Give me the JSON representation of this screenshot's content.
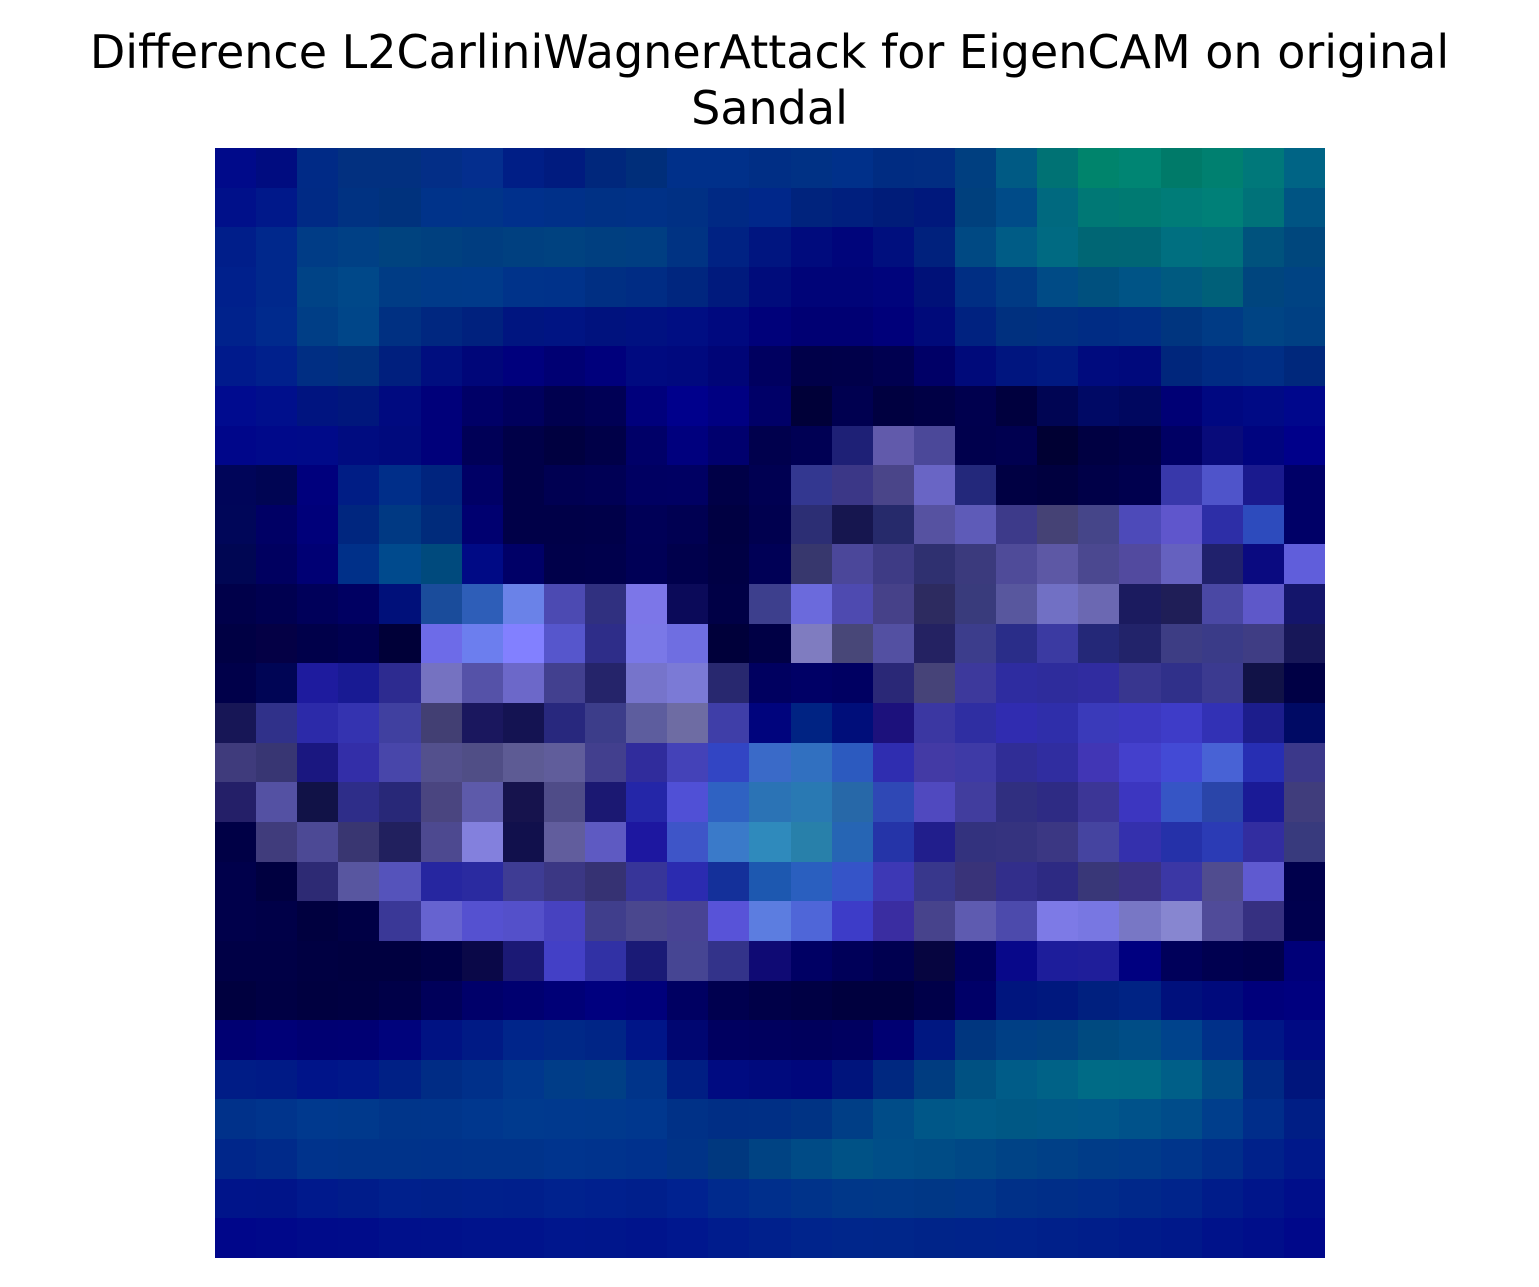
{
  "figure": {
    "title_line1": "Difference L2CarliniWagnerAttack for EigenCAM on original",
    "title_line2": "Sandal"
  },
  "chart_data": {
    "type": "heatmap",
    "title": "Difference L2CarliniWagnerAttack for EigenCAM on original Sandal",
    "axes_visible": false,
    "grid": false,
    "colors": [
      [
        "#000a8a",
        "#000c80",
        "#002a86",
        "#023080",
        "#023080",
        "#032e87",
        "#042e8e",
        "#001e86",
        "#001b7f",
        "#00277c",
        "#002e7a",
        "#00308a",
        "#00308a",
        "#002e85",
        "#003185",
        "#00308a",
        "#002c82",
        "#012d82",
        "#003f80",
        "#005a84",
        "#007274",
        "#00846c",
        "#008573",
        "#007a69",
        "#008070",
        "#00787a",
        "#006485"
      ],
      [
        "#00108a",
        "#00188a",
        "#002a85",
        "#003282",
        "#00327d",
        "#00338a",
        "#003489",
        "#00308c",
        "#003089",
        "#003185",
        "#003187",
        "#003084",
        "#002984",
        "#00278a",
        "#00237d",
        "#001f7e",
        "#001c79",
        "#00187c",
        "#00407d",
        "#004b88",
        "#00697f",
        "#007875",
        "#007a72",
        "#007c78",
        "#008078",
        "#007279",
        "#005483"
      ],
      [
        "#001e8a",
        "#00288c",
        "#003c86",
        "#004085",
        "#00437f",
        "#00407f",
        "#003d80",
        "#004080",
        "#004280",
        "#003f80",
        "#003e82",
        "#003383",
        "#002283",
        "#001580",
        "#000b7d",
        "#00057b",
        "#000f7e",
        "#00217d",
        "#004983",
        "#005c86",
        "#006a82",
        "#006674",
        "#006675",
        "#006f80",
        "#00707c",
        "#00527d",
        "#00477d"
      ],
      [
        "#00208c",
        "#00288c",
        "#004386",
        "#004889",
        "#003c85",
        "#003a89",
        "#003a8a",
        "#00338a",
        "#00328a",
        "#002f83",
        "#002c84",
        "#00267f",
        "#001a7d",
        "#000c7b",
        "#000478",
        "#000478",
        "#00047c",
        "#001178",
        "#002e83",
        "#003a84",
        "#004b86",
        "#00507e",
        "#005486",
        "#005a80",
        "#006079",
        "#00457e",
        "#004383"
      ],
      [
        "#00228c",
        "#002a8d",
        "#003e86",
        "#004689",
        "#003082",
        "#002780",
        "#00217e",
        "#001580",
        "#001483",
        "#00127e",
        "#001181",
        "#000e83",
        "#00097f",
        "#00017a",
        "#000073",
        "#000073",
        "#00007a",
        "#000a7a",
        "#002280",
        "#00307f",
        "#002f82",
        "#002c84",
        "#002e85",
        "#00357f",
        "#003b85",
        "#004484",
        "#004083"
      ],
      [
        "#001a8c",
        "#00208c",
        "#002e83",
        "#00307e",
        "#001f7e",
        "#000e7f",
        "#000679",
        "#00007d",
        "#000073",
        "#00007c",
        "#000a80",
        "#00097e",
        "#000577",
        "#000060",
        "#000049",
        "#00004a",
        "#000050",
        "#000067",
        "#000a7a",
        "#00157f",
        "#001981",
        "#000b7e",
        "#00097c",
        "#00267c",
        "#002b83",
        "#002e85",
        "#00287c"
      ],
      [
        "#000b8f",
        "#000f8c",
        "#001480",
        "#00177c",
        "#000a80",
        "#00007a",
        "#000067",
        "#00005d",
        "#00004f",
        "#000055",
        "#00007c",
        "#00008c",
        "#000082",
        "#000068",
        "#000038",
        "#000050",
        "#000040",
        "#000045",
        "#00004e",
        "#00003e",
        "#000553",
        "#000965",
        "#00075f",
        "#000075",
        "#000881",
        "#000a85",
        "#00078c"
      ],
      [
        "#00068a",
        "#00098a",
        "#000a89",
        "#000c80",
        "#000a7d",
        "#00007a",
        "#000057",
        "#000048",
        "#000040",
        "#000048",
        "#000068",
        "#00007e",
        "#00006e",
        "#00004d",
        "#000054",
        "#1e2076",
        "#615aab",
        "#4b4899",
        "#00004d",
        "#000050",
        "#000033",
        "#000042",
        "#000048",
        "#000064",
        "#080b7a",
        "#00047f",
        "#00008a"
      ],
      [
        "#000559",
        "#000553",
        "#00007d",
        "#001d85",
        "#002e89",
        "#00247e",
        "#000066",
        "#000048",
        "#000052",
        "#000055",
        "#000062",
        "#000063",
        "#000047",
        "#000052",
        "#333790",
        "#3b3787",
        "#4a4589",
        "#6965c5",
        "#23287b",
        "#000043",
        "#00003f",
        "#000048",
        "#00004e",
        "#3838aa",
        "#4f54ca",
        "#1a1a8e",
        "#000067"
      ],
      [
        "#000659",
        "#000065",
        "#00007a",
        "#00267f",
        "#003983",
        "#002b7b",
        "#000070",
        "#000048",
        "#000048",
        "#000049",
        "#000057",
        "#000052",
        "#000042",
        "#00004f",
        "#2c2e74",
        "#16164f",
        "#262a6b",
        "#5652a1",
        "#5e5bb8",
        "#3d3a8a",
        "#454275",
        "#454589",
        "#4d4ab9",
        "#5f56cc",
        "#2d2ea7",
        "#2d4bbd",
        "#000067"
      ],
      [
        "#000653",
        "#000060",
        "#000074",
        "#003089",
        "#004a8d",
        "#004a7d",
        "#000a85",
        "#000067",
        "#00004a",
        "#00004c",
        "#000056",
        "#00004c",
        "#000044",
        "#000056",
        "#37376d",
        "#4b479a",
        "#3e3b85",
        "#2f3070",
        "#3b3a7d",
        "#4f4b99",
        "#5d58a5",
        "#4b4890",
        "#524a9f",
        "#6561bf",
        "#20216c",
        "#0a0a80",
        "#605edb"
      ],
      [
        "#00004a",
        "#000050",
        "#00005a",
        "#000062",
        "#00107a",
        "#1a4c9b",
        "#2e5eb8",
        "#6a82e8",
        "#4c4ab2",
        "#303080",
        "#7c76e8",
        "#0b0a59",
        "#000046",
        "#3d3f8d",
        "#6b6adc",
        "#4e4ab0",
        "#464189",
        "#2d2b60",
        "#393b7c",
        "#58579e",
        "#7170c4",
        "#6b68b2",
        "#1b1b5f",
        "#1f1e57",
        "#4a48a4",
        "#5e58c9",
        "#14156b"
      ],
      [
        "#000044",
        "#040045",
        "#00004a",
        "#000050",
        "#000038",
        "#6d6be8",
        "#6c7eee",
        "#8280ff",
        "#5656cc",
        "#2e2d89",
        "#7a78e7",
        "#6f6ee1",
        "#00003a",
        "#000045",
        "#7f7cc0",
        "#484778",
        "#5350a2",
        "#242262",
        "#3c3d8c",
        "#2a2d89",
        "#3b3aa2",
        "#242878",
        "#22236a",
        "#3d3d84",
        "#3a3b88",
        "#3f3d84",
        "#171758"
      ],
      [
        "#00004a",
        "#000555",
        "#1e1b9e",
        "#181a93",
        "#2d2b90",
        "#7572c1",
        "#5552a8",
        "#6c68c9",
        "#42408f",
        "#25246a",
        "#7674cb",
        "#7b7ad6",
        "#28286f",
        "#000060",
        "#000066",
        "#000062",
        "#2a2877",
        "#464378",
        "#3d399c",
        "#2e2ca0",
        "#2e2c9c",
        "#302ca0",
        "#38368f",
        "#30308a",
        "#3b3a90",
        "#111247",
        "#000045"
      ],
      [
        "#171656",
        "#30318a",
        "#2c2aa9",
        "#3433b0",
        "#4040a0",
        "#423f73",
        "#1a175e",
        "#141352",
        "#28287e",
        "#3c3d8a",
        "#5d5d9e",
        "#6e6ca3",
        "#3f3ea8",
        "#00047d",
        "#002383",
        "#000e7a",
        "#1c117c",
        "#3b37a2",
        "#2f2ea2",
        "#302cb0",
        "#2f2eaa",
        "#3a3aba",
        "#3c38c0",
        "#3e3cc8",
        "#3231b5",
        "#1c1d8c",
        "#000a64"
      ],
      [
        "#3f3b7c",
        "#383673",
        "#1a1780",
        "#332ea8",
        "#4846aa",
        "#53508d",
        "#504e86",
        "#5d5b94",
        "#605d9b",
        "#423f8e",
        "#302c9c",
        "#4442b8",
        "#3245c4",
        "#3a6ac8",
        "#3170c0",
        "#2c5abf",
        "#2f2db0",
        "#433aa5",
        "#3e3aa6",
        "#302d96",
        "#302da0",
        "#4136b5",
        "#4440cc",
        "#434ad5",
        "#4862d5",
        "#272eb3",
        "#3b388a"
      ],
      [
        "#241f68",
        "#5451a3",
        "#111247",
        "#2e2d89",
        "#282878",
        "#4a4580",
        "#5d5aaa",
        "#16134d",
        "#4f4c88",
        "#1b1872",
        "#2426a8",
        "#5050d6",
        "#2f62c2",
        "#2b73b5",
        "#2979b3",
        "#2768a8",
        "#2f48b5",
        "#5049bf",
        "#413d9e",
        "#302f80",
        "#2e2b84",
        "#3c3696",
        "#3c36c0",
        "#3655c5",
        "#2a45a9",
        "#1a1a96",
        "#403d7c"
      ],
      [
        "#000046",
        "#403c7c",
        "#4c4995",
        "#393671",
        "#21205e",
        "#4d4990",
        "#8380dd",
        "#11104c",
        "#615d9d",
        "#5e5ac2",
        "#1d17a0",
        "#3e55c8",
        "#3a7ac9",
        "#2f8abc",
        "#2880aa",
        "#2665b4",
        "#2534a8",
        "#211e8c",
        "#33327e",
        "#35337f",
        "#3b3783",
        "#4544a0",
        "#3430ad",
        "#2531a9",
        "#2b3bb5",
        "#322da0",
        "#383a7d"
      ],
      [
        "#00004b",
        "#000040",
        "#2d2a74",
        "#5856a0",
        "#5553bb",
        "#2626a0",
        "#2a2aa0",
        "#3e3c94",
        "#3b3784",
        "#363273",
        "#373599",
        "#2b2bb0",
        "#14309a",
        "#1d58b0",
        "#2a5fbf",
        "#3554c8",
        "#3d38b5",
        "#38378c",
        "#393379",
        "#322e8b",
        "#2d2a83",
        "#393778",
        "#3a3285",
        "#3b37a5",
        "#504c8f",
        "#5f5ad0",
        "#00004c"
      ],
      [
        "#00004b",
        "#000048",
        "#00003f",
        "#000045",
        "#3a3897",
        "#6663d0",
        "#5551d0",
        "#5450ca",
        "#4742c0",
        "#403e8c",
        "#4a478e",
        "#484394",
        "#5853d8",
        "#5c7de0",
        "#4f66d8",
        "#3d3cc8",
        "#3a2da1",
        "#47438c",
        "#5e5bb0",
        "#4c4aac",
        "#7d7ae6",
        "#7877e2",
        "#7877c5",
        "#8786d0",
        "#504b99",
        "#363081",
        "#00004e"
      ],
      [
        "#000046",
        "#000046",
        "#000042",
        "#000040",
        "#000040",
        "#000046",
        "#0a0848",
        "#1b1975",
        "#4340c6",
        "#3131a5",
        "#1a1a76",
        "#464593",
        "#33338a",
        "#0f0a74",
        "#000064",
        "#000059",
        "#000050",
        "#060540",
        "#00005e",
        "#08088a",
        "#1d1d9b",
        "#1f1e9a",
        "#000080",
        "#00005a",
        "#000050",
        "#00004c",
        "#000078"
      ],
      [
        "#00003f",
        "#000044",
        "#000040",
        "#000042",
        "#000048",
        "#00005a",
        "#00006a",
        "#000070",
        "#000077",
        "#00007f",
        "#00007b",
        "#000062",
        "#00004f",
        "#000048",
        "#000044",
        "#00003e",
        "#00003e",
        "#000049",
        "#000068",
        "#00157e",
        "#00187e",
        "#00207f",
        "#002384",
        "#00107c",
        "#000a7c",
        "#00007b",
        "#00007f"
      ],
      [
        "#000072",
        "#000077",
        "#000072",
        "#000073",
        "#00037c",
        "#001283",
        "#001a85",
        "#00258a",
        "#002887",
        "#002586",
        "#001588",
        "#000671",
        "#000060",
        "#00005e",
        "#00005c",
        "#000060",
        "#000072",
        "#001781",
        "#00367f",
        "#003f85",
        "#004182",
        "#004a80",
        "#004d86",
        "#00438c",
        "#003089",
        "#001686",
        "#000a83"
      ],
      [
        "#001c86",
        "#001a86",
        "#001489",
        "#001789",
        "#002085",
        "#002c85",
        "#00308a",
        "#00378d",
        "#003d88",
        "#003f85",
        "#00348a",
        "#001e83",
        "#000b81",
        "#000a7d",
        "#00077c",
        "#00147c",
        "#002880",
        "#003c80",
        "#005182",
        "#005c88",
        "#006287",
        "#006b86",
        "#006a86",
        "#005f88",
        "#004b86",
        "#002984",
        "#00157c"
      ],
      [
        "#00318a",
        "#00348c",
        "#00398e",
        "#00398c",
        "#00358a",
        "#00358b",
        "#00378e",
        "#003a8e",
        "#00398e",
        "#00398d",
        "#00378e",
        "#003187",
        "#002e85",
        "#002f85",
        "#003384",
        "#003e86",
        "#004c88",
        "#005788",
        "#005a88",
        "#005885",
        "#005888",
        "#00578a",
        "#00528a",
        "#004c8a",
        "#003e8c",
        "#002d8a",
        "#001e85"
      ],
      [
        "#00268a",
        "#002a8a",
        "#00338c",
        "#00338a",
        "#00338a",
        "#00328b",
        "#00338b",
        "#00338b",
        "#00348e",
        "#00338d",
        "#00318d",
        "#003387",
        "#00387f",
        "#004383",
        "#004b86",
        "#005286",
        "#004e88",
        "#004c86",
        "#004886",
        "#004386",
        "#004087",
        "#003c88",
        "#003a8a",
        "#00358b",
        "#002d8a",
        "#00218a",
        "#00188a"
      ],
      [
        "#00148a",
        "#001489",
        "#00198c",
        "#001c8a",
        "#00208c",
        "#00208a",
        "#00208c",
        "#001f8c",
        "#00228e",
        "#00208e",
        "#001f8c",
        "#002290",
        "#002a8d",
        "#002f8c",
        "#00338a",
        "#003789",
        "#003888",
        "#003786",
        "#003689",
        "#003088",
        "#002e88",
        "#002c8a",
        "#00288a",
        "#00248b",
        "#001c8a",
        "#00158a",
        "#000e8a"
      ],
      [
        "#00068a",
        "#00088a",
        "#000b8a",
        "#000c8a",
        "#00108b",
        "#00118b",
        "#00138c",
        "#00138c",
        "#00168d",
        "#00168c",
        "#00148c",
        "#00178e",
        "#001c8d",
        "#00208c",
        "#00248c",
        "#00268b",
        "#00268a",
        "#002489",
        "#00238a",
        "#00228b",
        "#00208a",
        "#001e8a",
        "#001b8a",
        "#00188a",
        "#00128a",
        "#000e8a",
        "#00088a"
      ]
    ]
  }
}
